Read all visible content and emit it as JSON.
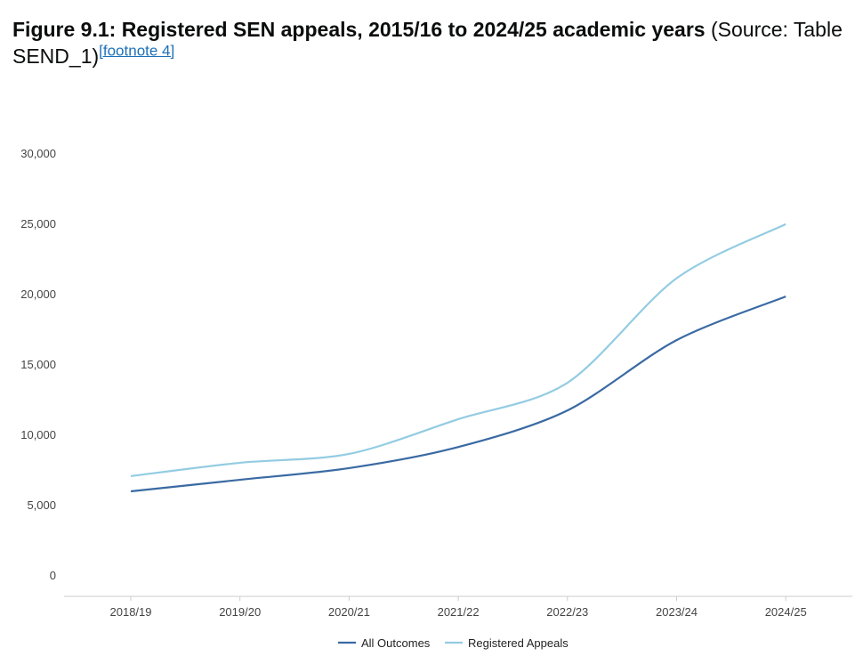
{
  "title": {
    "bold": "Figure 9.1: Registered SEN appeals, 2015/16 to 2024/25 academic years",
    "normal": " (Source: Table SEND_1)",
    "footnote": "[footnote 4]"
  },
  "chart_data": {
    "type": "line",
    "title": "Figure 9.1: Registered SEN appeals, 2015/16 to 2024/25 academic years",
    "categories": [
      "2018/19",
      "2019/20",
      "2020/21",
      "2021/22",
      "2022/23",
      "2023/24",
      "2024/25"
    ],
    "ylim": [
      0,
      30000
    ],
    "yticks": [
      0,
      5000,
      10000,
      15000,
      20000,
      25000,
      30000
    ],
    "ytick_labels": [
      "0",
      "5,000",
      "10,000",
      "15,000",
      "20,000",
      "25,000",
      "30,000"
    ],
    "grid": false,
    "legend": "bottom",
    "series": [
      {
        "name": "All Outcomes",
        "color": "#3a6aa3",
        "values": [
          5950,
          6770,
          7600,
          9100,
          11700,
          16700,
          19800
        ]
      },
      {
        "name": "Registered Appeals",
        "color": "#93cce2",
        "values": [
          7030,
          7980,
          8610,
          11080,
          13670,
          21100,
          24950
        ]
      }
    ]
  }
}
